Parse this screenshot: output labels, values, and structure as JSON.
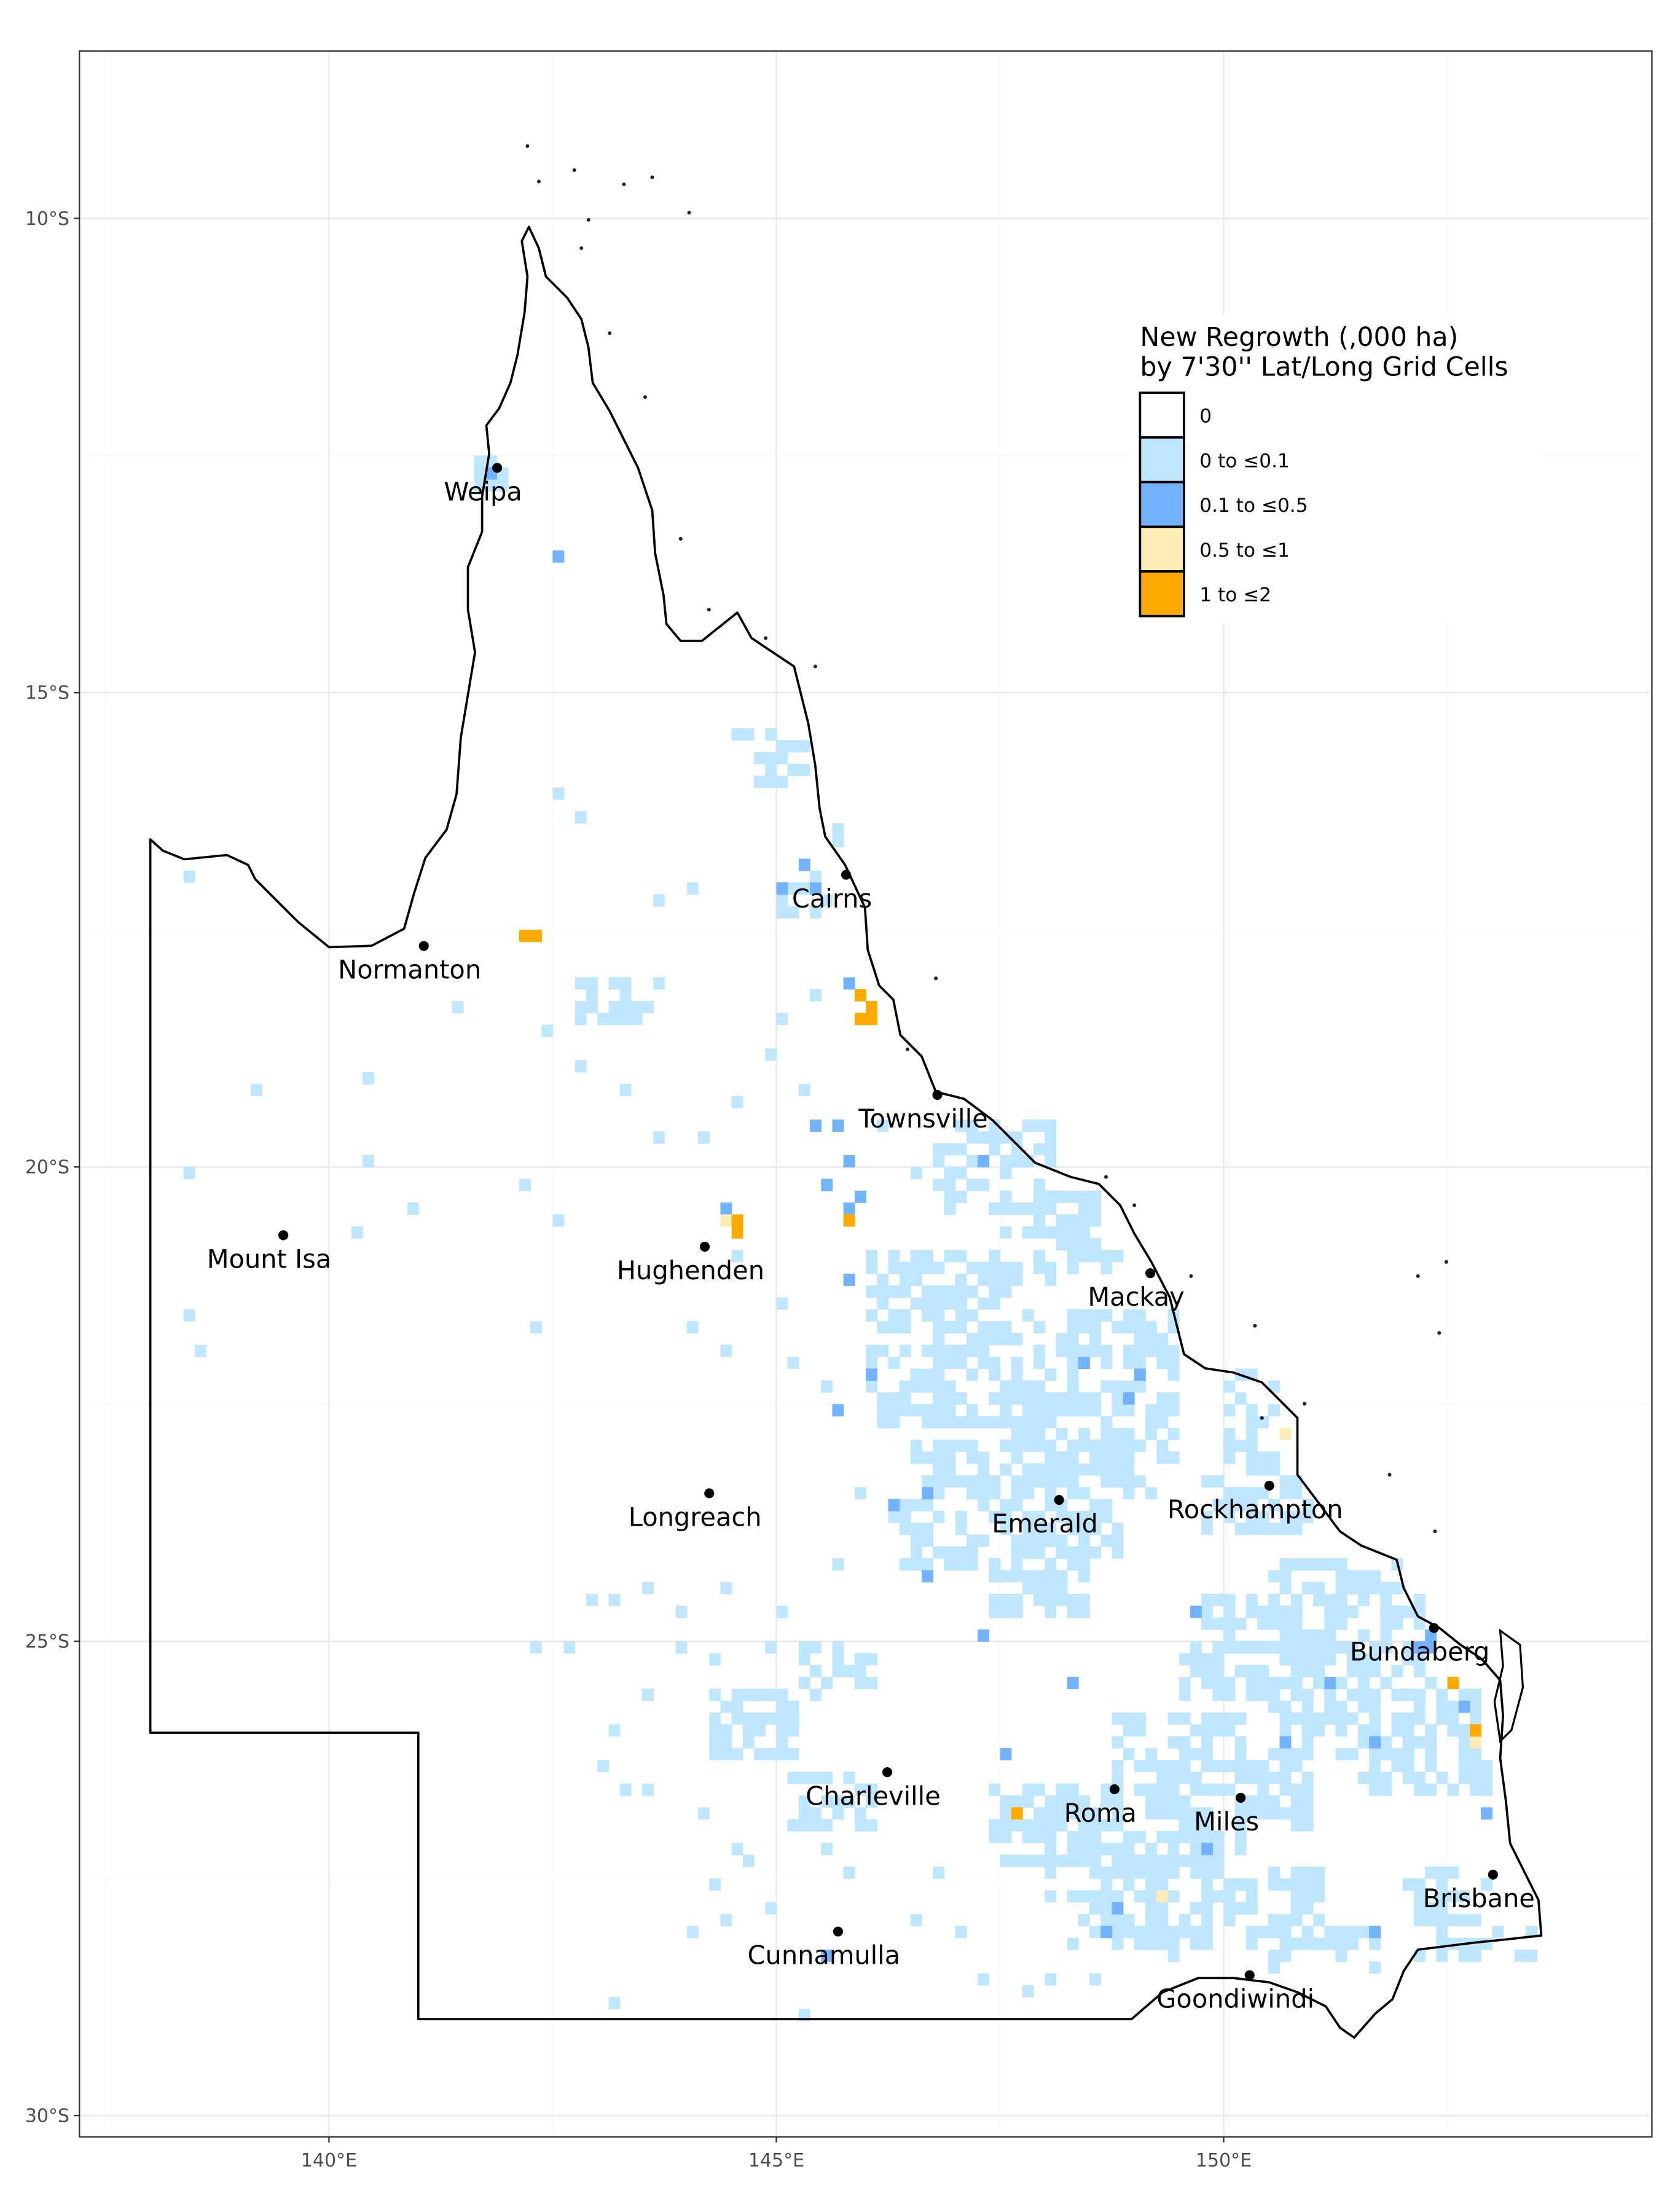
{
  "chart_data": {
    "type": "heatmap",
    "subtype": "choropleth grid map",
    "xlim": [
      137.2,
      154.8
    ],
    "ylim": [
      -30.0,
      -8.2
    ],
    "x_ticks": [
      140,
      145,
      150
    ],
    "x_tick_labels": [
      "140°E",
      "145°E",
      "150°E"
    ],
    "y_ticks": [
      -10,
      -15,
      -20,
      -25,
      -30
    ],
    "y_tick_labels": [
      "10°S",
      "15°S",
      "20°S",
      "25°S",
      "30°S"
    ],
    "grid": true,
    "cell_size_deg": 0.125,
    "legend": {
      "title_lines": [
        "New Regrowth (,000 ha)",
        "by 7'30'' Lat/Long Grid Cells"
      ],
      "placement": "top-right",
      "classes": [
        {
          "label": "0",
          "color": "#ffffff"
        },
        {
          "label": "0  to ≤0.1",
          "color": "#bfe6ff"
        },
        {
          "label": "0.1  to ≤0.5",
          "color": "#73b2ff"
        },
        {
          "label": "0.5  to ≤1",
          "color": "#ffebb5"
        },
        {
          "label": "1  to ≤2",
          "color": "#ffaa00"
        }
      ]
    },
    "cities": [
      {
        "name": "Weipa",
        "lon": 141.88,
        "lat": -12.63
      },
      {
        "name": "Normanton",
        "lon": 141.06,
        "lat": -17.67
      },
      {
        "name": "Cairns",
        "lon": 145.78,
        "lat": -16.92
      },
      {
        "name": "Townsville",
        "lon": 146.8,
        "lat": -19.24
      },
      {
        "name": "Mount Isa",
        "lon": 139.49,
        "lat": -20.72
      },
      {
        "name": "Hughenden",
        "lon": 144.2,
        "lat": -20.84
      },
      {
        "name": "Mackay",
        "lon": 149.18,
        "lat": -21.12
      },
      {
        "name": "Rockhampton",
        "lon": 150.51,
        "lat": -23.36
      },
      {
        "name": "Longreach",
        "lon": 144.25,
        "lat": -23.44
      },
      {
        "name": "Emerald",
        "lon": 148.16,
        "lat": -23.51
      },
      {
        "name": "Bundaberg",
        "lon": 152.35,
        "lat": -24.86
      },
      {
        "name": "Charleville",
        "lon": 146.24,
        "lat": -26.38
      },
      {
        "name": "Roma",
        "lon": 148.78,
        "lat": -26.56
      },
      {
        "name": "Miles",
        "lon": 150.19,
        "lat": -26.65
      },
      {
        "name": "Brisbane",
        "lon": 153.01,
        "lat": -27.46
      },
      {
        "name": "Cunnamulla",
        "lon": 145.69,
        "lat": -28.06
      },
      {
        "name": "Goondiwindi",
        "lon": 150.29,
        "lat": -28.52
      }
    ],
    "class1_regions": [
      [
        141.7,
        -12.5,
        142.0,
        -12.8
      ],
      [
        144.5,
        -15.4,
        145.1,
        -15.5
      ],
      [
        144.75,
        -15.6,
        145.3,
        -15.9
      ],
      [
        145.5,
        -16.25,
        145.75,
        -16.7
      ],
      [
        145.0,
        -16.95,
        145.75,
        -17.3
      ],
      [
        142.8,
        -18.0,
        143.6,
        -18.4
      ],
      [
        146.85,
        -19.5,
        148.1,
        -20.5
      ],
      [
        147.4,
        -20.3,
        148.6,
        -20.9
      ],
      [
        147.9,
        -20.9,
        148.85,
        -21.15
      ],
      [
        146.1,
        -20.9,
        147.05,
        -21.65
      ],
      [
        146.75,
        -21.1,
        147.7,
        -21.9
      ],
      [
        147.7,
        -21.5,
        149.45,
        -22.1
      ],
      [
        146.0,
        -21.9,
        148.85,
        -22.65
      ],
      [
        147.4,
        -22.2,
        149.45,
        -23.1
      ],
      [
        146.6,
        -22.9,
        149.2,
        -23.4
      ],
      [
        147.2,
        -23.3,
        148.85,
        -24.1
      ],
      [
        146.3,
        -23.6,
        147.6,
        -24.2
      ],
      [
        147.4,
        -24.1,
        148.5,
        -24.75
      ],
      [
        150.1,
        -22.2,
        150.6,
        -23.4
      ],
      [
        149.8,
        -23.3,
        151.0,
        -23.8
      ],
      [
        150.6,
        -24.2,
        151.9,
        -24.75
      ],
      [
        149.8,
        -24.6,
        152.2,
        -25.1
      ],
      [
        149.6,
        -25.0,
        152.2,
        -25.6
      ],
      [
        150.6,
        -25.4,
        152.8,
        -26.2
      ],
      [
        151.55,
        -25.9,
        152.95,
        -26.6
      ],
      [
        148.8,
        -25.8,
        150.25,
        -26.4
      ],
      [
        149.0,
        -26.3,
        150.9,
        -26.9
      ],
      [
        147.4,
        -26.5,
        148.8,
        -27.3
      ],
      [
        148.05,
        -27.1,
        150.25,
        -27.7
      ],
      [
        148.35,
        -27.7,
        150.6,
        -28.2
      ],
      [
        149.8,
        -27.4,
        151.1,
        -28.0
      ],
      [
        152.0,
        -27.4,
        153.0,
        -27.9
      ],
      [
        152.2,
        -28.0,
        153.5,
        -28.3
      ],
      [
        150.6,
        -28.0,
        151.7,
        -28.45
      ],
      [
        145.2,
        -26.4,
        146.1,
        -27.0
      ],
      [
        145.35,
        -25.1,
        146.1,
        -25.4
      ],
      [
        144.25,
        -25.6,
        145.2,
        -26.25
      ]
    ],
    "class1_cells": [
      [
        138.43,
        -16.94
      ],
      [
        142.55,
        -16.07
      ],
      [
        142.8,
        -16.31
      ],
      [
        143.68,
        -17.16
      ],
      [
        144.06,
        -17.07
      ],
      [
        145.0,
        -17.27
      ],
      [
        145.48,
        -18.24
      ],
      [
        145.04,
        -18.43
      ],
      [
        143.65,
        -18.01
      ],
      [
        141.47,
        -18.34
      ],
      [
        142.42,
        -18.54
      ],
      [
        140.48,
        -19.06
      ],
      [
        139.18,
        -19.18
      ],
      [
        138.43,
        -20.04
      ],
      [
        140.44,
        -19.98
      ],
      [
        140.92,
        -20.4
      ],
      [
        140.29,
        -20.67
      ],
      [
        142.19,
        -20.22
      ],
      [
        142.58,
        -20.58
      ],
      [
        138.46,
        -21.57
      ],
      [
        138.54,
        -21.97
      ],
      [
        142.31,
        -21.69
      ],
      [
        142.82,
        -18.91
      ],
      [
        143.3,
        -19.21
      ],
      [
        143.69,
        -19.66
      ],
      [
        144.17,
        -19.63
      ],
      [
        144.56,
        -19.36
      ],
      [
        144.88,
        -18.83
      ],
      [
        145.29,
        -19.21
      ],
      [
        146.15,
        -19.58
      ],
      [
        146.62,
        -20.03
      ],
      [
        144.56,
        -21.0
      ],
      [
        145.04,
        -21.45
      ],
      [
        144.09,
        -21.69
      ],
      [
        144.4,
        -21.97
      ],
      [
        145.2,
        -22.05
      ],
      [
        145.52,
        -22.27
      ],
      [
        145.91,
        -23.39
      ],
      [
        145.67,
        -24.14
      ],
      [
        145.04,
        -24.74
      ],
      [
        144.4,
        -24.44
      ],
      [
        143.93,
        -24.66
      ],
      [
        143.53,
        -24.44
      ],
      [
        143.22,
        -24.56
      ],
      [
        142.9,
        -24.56
      ],
      [
        142.35,
        -25.05
      ],
      [
        142.66,
        -25.05
      ],
      [
        143.93,
        -25.04
      ],
      [
        144.88,
        -25.11
      ],
      [
        145.44,
        -25.56
      ],
      [
        144.25,
        -25.19
      ],
      [
        143.53,
        -25.56
      ],
      [
        143.22,
        -25.9
      ],
      [
        144.4,
        -25.9
      ],
      [
        143.06,
        -26.31
      ],
      [
        143.3,
        -26.53
      ],
      [
        143.61,
        -26.53
      ],
      [
        144.17,
        -26.8
      ],
      [
        144.56,
        -27.13
      ],
      [
        144.25,
        -27.55
      ],
      [
        144.72,
        -27.28
      ],
      [
        144.0,
        -28.03
      ],
      [
        144.4,
        -27.95
      ],
      [
        144.88,
        -27.85
      ],
      [
        145.52,
        -27.13
      ],
      [
        145.83,
        -27.43
      ],
      [
        146.78,
        -27.43
      ],
      [
        146.62,
        -27.88
      ],
      [
        147.1,
        -28.03
      ],
      [
        147.26,
        -28.55
      ],
      [
        147.81,
        -28.7
      ],
      [
        148.05,
        -28.62
      ],
      [
        148.53,
        -28.55
      ],
      [
        149.48,
        -28.33
      ],
      [
        143.22,
        -28.8
      ],
      [
        145.36,
        -28.89
      ]
    ],
    "class2_cells": [
      [
        142.58,
        -13.57
      ],
      [
        141.87,
        -12.63
      ],
      [
        145.32,
        -16.79
      ],
      [
        145.44,
        -17.12
      ],
      [
        145.08,
        -17.12
      ],
      [
        145.8,
        -18.04
      ],
      [
        145.59,
        -20.18
      ],
      [
        145.83,
        -19.96
      ],
      [
        145.75,
        -20.4
      ],
      [
        145.99,
        -20.33
      ],
      [
        145.67,
        -19.58
      ],
      [
        145.44,
        -19.58
      ],
      [
        147.26,
        -19.93
      ],
      [
        144.44,
        -20.43
      ],
      [
        145.8,
        -21.18
      ],
      [
        145.67,
        -22.54
      ],
      [
        146.07,
        -22.17
      ],
      [
        148.45,
        -22.05
      ],
      [
        149.0,
        -22.2
      ],
      [
        148.92,
        -22.5
      ],
      [
        146.31,
        -23.62
      ],
      [
        146.7,
        -24.29
      ],
      [
        146.7,
        -23.39
      ],
      [
        147.26,
        -24.96
      ],
      [
        148.37,
        -25.41
      ],
      [
        149.68,
        -24.68
      ],
      [
        149.79,
        -27.13
      ],
      [
        151.63,
        -28.1
      ],
      [
        145.56,
        -28.3
      ],
      [
        148.69,
        -28.03
      ],
      [
        148.84,
        -27.8
      ],
      [
        152.25,
        -24.89
      ],
      [
        152.33,
        -25.04
      ],
      [
        152.17,
        -25.11
      ],
      [
        152.73,
        -25.71
      ],
      [
        152.8,
        -25.93
      ],
      [
        152.93,
        -26.83
      ],
      [
        147.58,
        -26.23
      ],
      [
        151.22,
        -25.41
      ],
      [
        151.7,
        -26.01
      ],
      [
        150.67,
        -26.01
      ]
    ],
    "class3_cells": [
      [
        150.7,
        -22.8
      ],
      [
        149.3,
        -27.7
      ],
      [
        152.85,
        -26.1
      ],
      [
        144.45,
        -20.55
      ]
    ],
    "class4_cells": [
      [
        142.15,
        -17.55
      ],
      [
        142.3,
        -17.55
      ],
      [
        145.9,
        -18.2
      ],
      [
        146.0,
        -18.3
      ],
      [
        146.05,
        -18.45
      ],
      [
        145.95,
        -18.45
      ],
      [
        144.55,
        -20.55
      ],
      [
        144.55,
        -20.7
      ],
      [
        145.8,
        -20.55
      ],
      [
        147.7,
        -26.8
      ],
      [
        152.6,
        -25.4
      ],
      [
        152.8,
        -25.95
      ]
    ]
  }
}
